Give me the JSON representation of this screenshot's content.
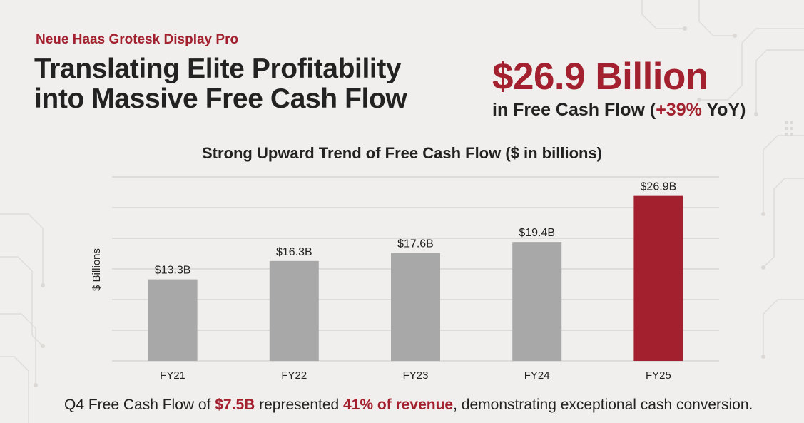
{
  "header": {
    "eyebrow": "Neue Haas Grotesk Display Pro",
    "headline_line1": "Translating Elite Profitability",
    "headline_line2": "into Massive Free Cash Flow"
  },
  "stat": {
    "value": "$26.9 Billion",
    "sub_prefix": "in Free Cash Flow (",
    "sub_change": "+39%",
    "sub_suffix": " YoY)"
  },
  "footnote": {
    "text1": "Q4 Free Cash Flow of ",
    "highlight1": "$7.5B",
    "text2": " represented ",
    "highlight2": "41% of revenue",
    "text3": ", demonstrating exceptional cash conversion."
  },
  "colors": {
    "accent": "#a3212f",
    "bar_default": "#a8a8a8",
    "bar_highlight": "#a3212f",
    "grid": "#c9c9c9"
  },
  "chart_data": {
    "type": "bar",
    "title": "Strong Upward Trend of Free Cash Flow ($ in billions)",
    "ylabel": "$ Billions",
    "xlabel": "",
    "categories": [
      "FY21",
      "FY22",
      "FY23",
      "FY24",
      "FY25"
    ],
    "values": [
      13.3,
      16.3,
      17.6,
      19.4,
      26.9
    ],
    "data_labels": [
      "$13.3B",
      "$16.3B",
      "$17.6B",
      "$19.4B",
      "$26.9B"
    ],
    "highlight_index": 4,
    "ylim": [
      0,
      30
    ],
    "grid": true,
    "legend": "none"
  }
}
